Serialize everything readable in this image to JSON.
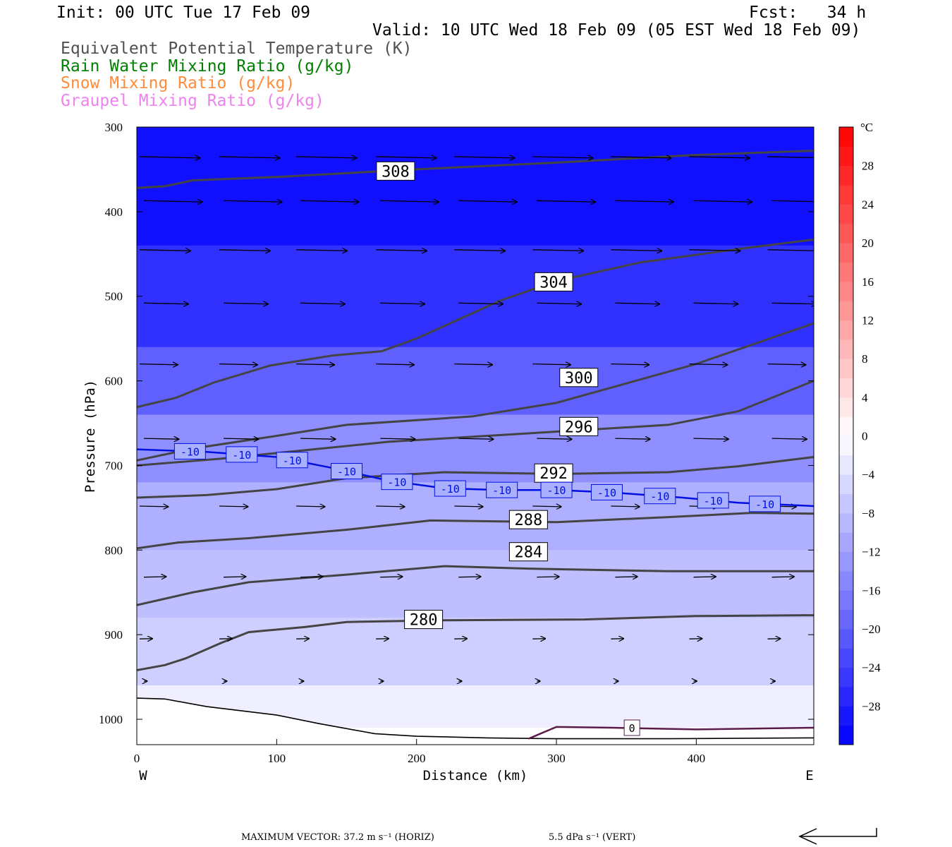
{
  "header": {
    "init": "Init: 00 UTC Tue 17 Feb 09",
    "fcst": "Fcst:   34 h",
    "valid": "Valid: 10 UTC Wed 18 Feb 09 (05 EST Wed 18 Feb 09)"
  },
  "legend": [
    {
      "label": "Equivalent Potential Temperature (K)",
      "color": "#505050"
    },
    {
      "label": "Rain Water Mixing Ratio (g/kg)",
      "color": "#008000"
    },
    {
      "label": "Snow Mixing Ratio (g/kg)",
      "color": "#ff8c3c"
    },
    {
      "label": "Graupel Mixing Ratio (g/kg)",
      "color": "#ee82ee"
    }
  ],
  "chart_data": {
    "type": "cross-section",
    "xlabel": "Distance (km)",
    "ylabel": "Pressure (hPa)",
    "xlim": [
      0,
      484
    ],
    "ylim": [
      1030,
      300
    ],
    "x_ticks": [
      0,
      100,
      200,
      300,
      400
    ],
    "y_ticks": [
      300,
      400,
      500,
      600,
      700,
      800,
      900,
      1000
    ],
    "x_end_labels": {
      "left": "W",
      "right": "E"
    },
    "temperature_shading": [
      {
        "p": 440,
        "t": -30
      },
      {
        "p": 560,
        "t": -26
      },
      {
        "p": 640,
        "t": -20
      },
      {
        "p": 720,
        "t": -14
      },
      {
        "p": 800,
        "t": -10
      },
      {
        "p": 880,
        "t": -8
      },
      {
        "p": 960,
        "t": -6
      },
      {
        "p": 1010,
        "t": -2
      }
    ],
    "theta_e_contours": [
      {
        "label": "308",
        "label_at": [
          185,
          352
        ],
        "points": [
          [
            0,
            372
          ],
          [
            20,
            370
          ],
          [
            40,
            363
          ],
          [
            100,
            359
          ],
          [
            200,
            350
          ],
          [
            300,
            342
          ],
          [
            400,
            333
          ],
          [
            484,
            328
          ]
        ]
      },
      {
        "label": "304",
        "label_at": [
          298,
          483
        ],
        "points": [
          [
            0,
            631
          ],
          [
            28,
            620
          ],
          [
            55,
            602
          ],
          [
            95,
            582
          ],
          [
            140,
            570
          ],
          [
            175,
            565
          ],
          [
            200,
            550
          ],
          [
            260,
            505
          ],
          [
            300,
            482
          ],
          [
            360,
            460
          ],
          [
            440,
            442
          ],
          [
            484,
            433
          ]
        ]
      },
      {
        "label": "300",
        "label_at": [
          316,
          596
        ],
        "points": [
          [
            0,
            694
          ],
          [
            40,
            680
          ],
          [
            100,
            665
          ],
          [
            150,
            652
          ],
          [
            240,
            642
          ],
          [
            300,
            626
          ],
          [
            400,
            580
          ],
          [
            484,
            532
          ]
        ]
      },
      {
        "label": "296",
        "label_at": [
          316,
          654
        ],
        "points": [
          [
            0,
            700
          ],
          [
            60,
            692
          ],
          [
            120,
            682
          ],
          [
            180,
            672
          ],
          [
            240,
            666
          ],
          [
            300,
            660
          ],
          [
            380,
            652
          ],
          [
            430,
            636
          ],
          [
            484,
            600
          ]
        ]
      },
      {
        "label": "292",
        "label_at": [
          298,
          709
        ],
        "points": [
          [
            0,
            738
          ],
          [
            50,
            735
          ],
          [
            100,
            728
          ],
          [
            150,
            715
          ],
          [
            220,
            708
          ],
          [
            300,
            710
          ],
          [
            380,
            708
          ],
          [
            430,
            701
          ],
          [
            484,
            690
          ]
        ]
      },
      {
        "label": "288",
        "label_at": [
          280,
          764
        ],
        "points": [
          [
            0,
            798
          ],
          [
            30,
            791
          ],
          [
            80,
            786
          ],
          [
            150,
            776
          ],
          [
            210,
            765
          ],
          [
            300,
            767
          ],
          [
            380,
            761
          ],
          [
            440,
            756
          ],
          [
            484,
            757
          ]
        ]
      },
      {
        "label": "284",
        "label_at": [
          280,
          802
        ],
        "points": [
          [
            0,
            865
          ],
          [
            40,
            850
          ],
          [
            80,
            838
          ],
          [
            150,
            829
          ],
          [
            220,
            819
          ],
          [
            280,
            822
          ],
          [
            380,
            825
          ],
          [
            484,
            825
          ]
        ]
      },
      {
        "label": "280",
        "label_at": [
          205,
          882
        ],
        "points": [
          [
            0,
            942
          ],
          [
            20,
            936
          ],
          [
            35,
            928
          ],
          [
            60,
            910
          ],
          [
            80,
            897
          ],
          [
            120,
            891
          ],
          [
            150,
            885
          ],
          [
            220,
            883
          ],
          [
            320,
            882
          ],
          [
            400,
            878
          ],
          [
            484,
            877
          ]
        ]
      }
    ],
    "temp_minus10_contour": {
      "label": "-10",
      "points": [
        [
          0,
          681
        ],
        [
          50,
          684
        ],
        [
          100,
          690
        ],
        [
          140,
          703
        ],
        [
          180,
          718
        ],
        [
          220,
          727
        ],
        [
          260,
          729
        ],
        [
          300,
          729
        ],
        [
          340,
          732
        ],
        [
          390,
          738
        ],
        [
          430,
          744
        ],
        [
          484,
          748
        ]
      ],
      "label_xs": [
        38,
        75,
        111,
        150,
        186,
        224,
        261,
        300,
        336,
        374,
        412,
        449
      ]
    },
    "zero_contour": {
      "label": "0",
      "points": [
        [
          280,
          1023
        ],
        [
          300,
          1009
        ],
        [
          340,
          1010
        ],
        [
          400,
          1012
        ],
        [
          484,
          1010
        ]
      ]
    },
    "terrain": [
      [
        0,
        975
      ],
      [
        20,
        976
      ],
      [
        50,
        985
      ],
      [
        100,
        995
      ],
      [
        130,
        1005
      ],
      [
        170,
        1017
      ],
      [
        200,
        1020
      ],
      [
        250,
        1022
      ],
      [
        300,
        1023
      ],
      [
        380,
        1023
      ],
      [
        484,
        1022
      ]
    ],
    "wind_vectors": {
      "rows_p": [
        335,
        387,
        445,
        508,
        580,
        668,
        748,
        832,
        905,
        955
      ],
      "columns_x": [
        0,
        57,
        112,
        169,
        225,
        281,
        337,
        393,
        449
      ],
      "relative_speed_by_row": [
        0.95,
        0.92,
        0.8,
        0.7,
        0.6,
        0.55,
        0.45,
        0.35,
        0.2,
        0.05
      ]
    },
    "colorbar": {
      "unit": "°C",
      "labels": [
        28,
        24,
        20,
        16,
        12,
        8,
        4,
        0,
        -4,
        -8,
        -12,
        -16,
        -20,
        -24,
        -28
      ],
      "range": [
        -32,
        32
      ]
    }
  },
  "footer": {
    "max_vector": "MAXIMUM VECTOR:  37.2 m s⁻¹ (HORIZ)",
    "vert": "5.5 dPa s⁻¹ (VERT)"
  }
}
